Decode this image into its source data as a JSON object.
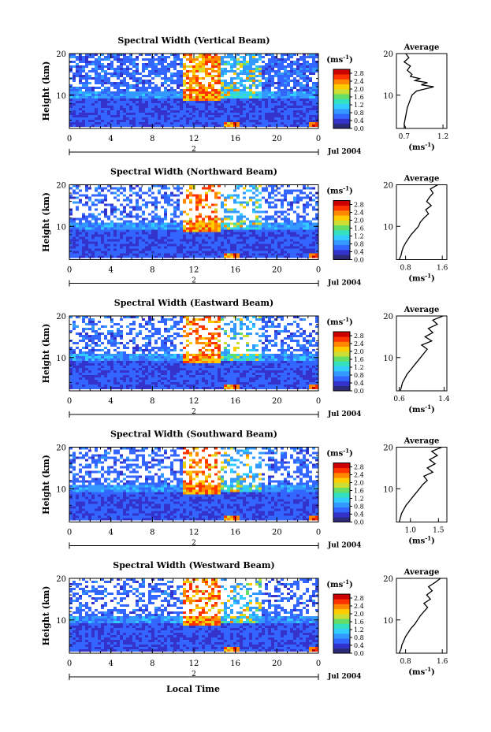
{
  "figure": {
    "xlabel": "Local Time",
    "date_label": "Jul 2004",
    "day_marker": "2",
    "height_label": "Height (km)",
    "avg_title": "Average",
    "colorbar_unit": "(ms",
    "colorbar_unit_exp": "-1",
    "colorbar_unit_close": ")",
    "avg_unit": "(ms",
    "avg_unit_exp": "-1",
    "avg_unit_close": ")",
    "colormap": [
      "#2b2b7a",
      "#3333cc",
      "#3366ff",
      "#3399ff",
      "#33ccff",
      "#33e0c0",
      "#66dd66",
      "#ccdd33",
      "#ffcc00",
      "#ff8800",
      "#ff3300",
      "#cc0000"
    ]
  },
  "chart_data": [
    {
      "type": "heatmap",
      "title": "Spectral Width (Vertical Beam)",
      "x_ticks": [
        "0",
        "4",
        "8",
        "12",
        "16",
        "20",
        "0"
      ],
      "xlim": [
        0,
        24
      ],
      "y_ticks": [
        "20",
        "10"
      ],
      "ylim": [
        2,
        20
      ],
      "colorbar_ticks": [
        "2.8",
        "2.4",
        "2.0",
        "1.6",
        "1.2",
        "0.8",
        "0.4",
        "0.0"
      ],
      "colorbar_range": [
        0.0,
        3.0
      ],
      "average_profile": {
        "type": "line",
        "x_ticks": [
          "0.7",
          "1.2"
        ],
        "xlim": [
          0.6,
          1.25
        ],
        "y_ticks": [
          "20",
          "10"
        ],
        "ylim": [
          2,
          20
        ],
        "height": [
          2,
          3,
          4,
          5,
          6,
          7,
          8,
          9,
          10,
          11,
          12,
          12.5,
          13,
          13.5,
          14,
          14.5,
          15,
          16,
          17,
          18,
          19,
          20
        ],
        "values": [
          0.72,
          0.7,
          0.71,
          0.72,
          0.73,
          0.74,
          0.76,
          0.78,
          0.8,
          0.86,
          1.08,
          0.92,
          1.0,
          0.84,
          0.9,
          0.78,
          0.8,
          0.74,
          0.78,
          0.7,
          0.76,
          0.72
        ]
      }
    },
    {
      "type": "heatmap",
      "title": "Spectral Width (Northward Beam)",
      "x_ticks": [
        "0",
        "4",
        "8",
        "12",
        "16",
        "20",
        "0"
      ],
      "xlim": [
        0,
        24
      ],
      "y_ticks": [
        "20",
        "10"
      ],
      "ylim": [
        2,
        20
      ],
      "colorbar_ticks": [
        "2.8",
        "2.4",
        "2.0",
        "1.6",
        "1.2",
        "0.8",
        "0.4",
        "0.0"
      ],
      "colorbar_range": [
        0.0,
        3.0
      ],
      "average_profile": {
        "type": "line",
        "x_ticks": [
          "0.8",
          "1.6"
        ],
        "xlim": [
          0.6,
          1.7
        ],
        "y_ticks": [
          "20",
          "10"
        ],
        "ylim": [
          2,
          20
        ],
        "height": [
          2,
          3,
          4,
          5,
          6,
          7,
          8,
          9,
          10,
          11,
          12,
          13,
          14,
          15,
          16,
          17,
          18,
          19,
          20
        ],
        "values": [
          0.66,
          0.7,
          0.72,
          0.75,
          0.8,
          0.86,
          0.92,
          1.0,
          1.08,
          1.12,
          1.2,
          1.3,
          1.24,
          1.36,
          1.26,
          1.32,
          1.4,
          1.34,
          1.5
        ]
      }
    },
    {
      "type": "heatmap",
      "title": "Spectral Width (Eastward Beam)",
      "x_ticks": [
        "0",
        "4",
        "8",
        "12",
        "16",
        "20",
        "0"
      ],
      "xlim": [
        0,
        24
      ],
      "y_ticks": [
        "20",
        "10"
      ],
      "ylim": [
        2,
        20
      ],
      "colorbar_ticks": [
        "2.8",
        "2.4",
        "2.0",
        "1.6",
        "1.2",
        "0.8",
        "0.4",
        "0.0"
      ],
      "colorbar_range": [
        0.0,
        3.0
      ],
      "average_profile": {
        "type": "line",
        "x_ticks": [
          "0.6",
          "1.4"
        ],
        "xlim": [
          0.55,
          1.45
        ],
        "y_ticks": [
          "20",
          "10"
        ],
        "ylim": [
          2,
          20
        ],
        "height": [
          2,
          3,
          4,
          5,
          6,
          7,
          8,
          9,
          10,
          11,
          12,
          13,
          14,
          15,
          16,
          17,
          18,
          19,
          20
        ],
        "values": [
          0.62,
          0.64,
          0.66,
          0.7,
          0.74,
          0.8,
          0.86,
          0.92,
          0.98,
          1.04,
          1.1,
          1.0,
          1.18,
          1.06,
          1.2,
          1.12,
          1.28,
          1.2,
          1.38
        ]
      }
    },
    {
      "type": "heatmap",
      "title": "Spectral Width (Southward Beam)",
      "x_ticks": [
        "0",
        "4",
        "8",
        "12",
        "16",
        "20",
        "0"
      ],
      "xlim": [
        0,
        24
      ],
      "y_ticks": [
        "20",
        "10"
      ],
      "ylim": [
        2,
        20
      ],
      "colorbar_ticks": [
        "2.8",
        "2.4",
        "2.0",
        "1.6",
        "1.2",
        "0.8",
        "0.4",
        "0.0"
      ],
      "colorbar_range": [
        0.0,
        3.0
      ],
      "average_profile": {
        "type": "line",
        "x_ticks": [
          "1.0",
          "1.5"
        ],
        "xlim": [
          0.75,
          1.65
        ],
        "y_ticks": [
          "20",
          "10"
        ],
        "ylim": [
          2,
          20
        ],
        "height": [
          2,
          3,
          4,
          5,
          6,
          7,
          8,
          9,
          10,
          11,
          12,
          13,
          14,
          15,
          16,
          17,
          18,
          19,
          20
        ],
        "values": [
          0.8,
          0.82,
          0.84,
          0.88,
          0.92,
          0.98,
          1.04,
          1.1,
          1.16,
          1.22,
          1.3,
          1.24,
          1.4,
          1.3,
          1.44,
          1.34,
          1.48,
          1.38,
          1.56
        ]
      }
    },
    {
      "type": "heatmap",
      "title": "Spectral Width (Westward Beam)",
      "x_ticks": [
        "0",
        "4",
        "8",
        "12",
        "16",
        "20",
        "0"
      ],
      "xlim": [
        0,
        24
      ],
      "y_ticks": [
        "20",
        "10"
      ],
      "ylim": [
        2,
        20
      ],
      "colorbar_ticks": [
        "2.8",
        "2.4",
        "2.0",
        "1.6",
        "1.2",
        "0.8",
        "0.4",
        "0.0"
      ],
      "colorbar_range": [
        0.0,
        3.0
      ],
      "average_profile": {
        "type": "line",
        "x_ticks": [
          "0.8",
          "1.6"
        ],
        "xlim": [
          0.6,
          1.7
        ],
        "y_ticks": [
          "20",
          "10"
        ],
        "ylim": [
          2,
          20
        ],
        "height": [
          2,
          3,
          4,
          5,
          6,
          7,
          8,
          9,
          10,
          11,
          12,
          13,
          14,
          15,
          16,
          17,
          18,
          19,
          20
        ],
        "values": [
          0.66,
          0.7,
          0.72,
          0.76,
          0.8,
          0.86,
          0.92,
          1.0,
          1.06,
          1.12,
          1.2,
          1.28,
          1.2,
          1.34,
          1.26,
          1.38,
          1.3,
          1.44,
          1.56
        ]
      }
    }
  ]
}
